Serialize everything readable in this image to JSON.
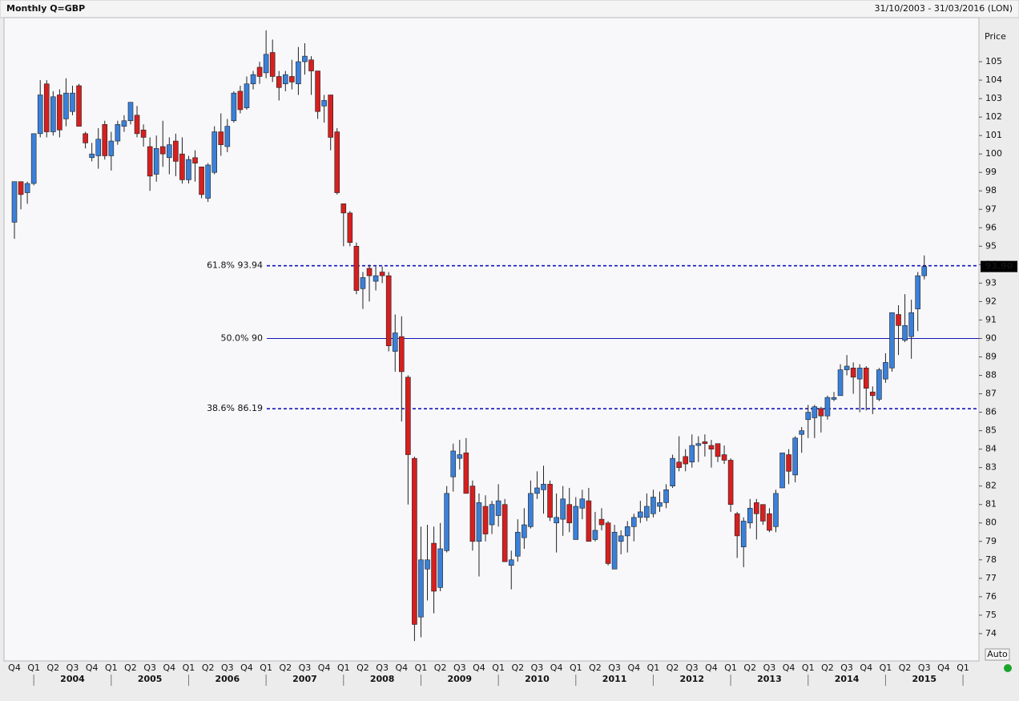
{
  "chart_data": {
    "type": "candlestick",
    "title": "Monthly Q=GBP",
    "date_range": "31/10/2003 - 31/03/2016 (LON)",
    "y_label": "Price",
    "auto_button": "Auto",
    "up_color": "#3b80d8",
    "down_color": "#d61f1f",
    "ylim": [
      72.52,
      107.39
    ],
    "yticks": [
      74,
      75,
      76,
      77,
      78,
      79,
      80,
      81,
      82,
      83,
      84,
      85,
      86,
      87,
      88,
      89,
      90,
      91,
      92,
      93,
      94,
      95,
      96,
      97,
      98,
      99,
      100,
      101,
      102,
      103,
      104,
      105
    ],
    "quarter_labels": [
      "Q4",
      "Q1",
      "Q2",
      "Q3",
      "Q4",
      "Q1",
      "Q2",
      "Q3",
      "Q4",
      "Q1",
      "Q2",
      "Q3",
      "Q4",
      "Q1",
      "Q2",
      "Q3",
      "Q4",
      "Q1",
      "Q2",
      "Q3",
      "Q4",
      "Q1",
      "Q2",
      "Q3",
      "Q4",
      "Q1",
      "Q2",
      "Q3",
      "Q4",
      "Q1",
      "Q2",
      "Q3",
      "Q4",
      "Q1",
      "Q2",
      "Q3",
      "Q4",
      "Q1",
      "Q2",
      "Q3",
      "Q4",
      "Q1",
      "Q2",
      "Q3",
      "Q4",
      "Q1",
      "Q2",
      "Q3",
      "Q4",
      "Q1"
    ],
    "year_labels": [
      "2004",
      "2005",
      "2006",
      "2007",
      "2008",
      "2009",
      "2010",
      "2011",
      "2012",
      "2013",
      "2014",
      "2015"
    ],
    "levels": [
      {
        "label": "61.8% 93.94",
        "value": 93.94,
        "style": "dashed"
      },
      {
        "label": "50.0% 90",
        "value": 90,
        "style": "solid"
      },
      {
        "label": "38.6% 86.19",
        "value": 86.19,
        "style": "dashed"
      }
    ],
    "last_price": {
      "value": 93.9,
      "label": "93.90"
    },
    "open": [
      96.3,
      98.5,
      97.9,
      98.4,
      101.1,
      103.8,
      101.2,
      103.2,
      101.9,
      102.3,
      103.7,
      101.1,
      99.8,
      99.9,
      101.6,
      99.9,
      100.7,
      101.5,
      101.8,
      102.1,
      101.3,
      100.4,
      98.9,
      100.4,
      99.8,
      100.7,
      100.0,
      98.6,
      99.8,
      99.3,
      97.6,
      99.0,
      101.2,
      100.4,
      101.8,
      103.4,
      102.5,
      103.8,
      104.7,
      104.4,
      105.5,
      104.2,
      103.8,
      104.2,
      103.8,
      105.0,
      105.1,
      104.5,
      102.6,
      103.2,
      101.2,
      97.3,
      96.8,
      95.0,
      92.7,
      93.8,
      93.1,
      93.6,
      93.4,
      89.3,
      90.1,
      87.9,
      83.5,
      74.9,
      77.5,
      78.9,
      76.5,
      78.5,
      82.5,
      83.5,
      83.8,
      82.0,
      79.0,
      80.9,
      79.9,
      80.4,
      81.0,
      77.7,
      78.2,
      79.2,
      79.8,
      81.6,
      81.8,
      82.1,
      80.0,
      80.2,
      81.0,
      79.1,
      80.8,
      81.2,
      79.1,
      80.2,
      80.0,
      77.5,
      79.0,
      79.3,
      79.8,
      80.3,
      80.3,
      80.5,
      80.9,
      81.1,
      82.0,
      83.3,
      83.6,
      83.3,
      84.2,
      84.4,
      84.2,
      84.3,
      83.7,
      83.4,
      80.5,
      78.7,
      80.0,
      81.1,
      81.0,
      80.5,
      79.8,
      81.9,
      83.7,
      82.6,
      84.8,
      85.6,
      85.7,
      86.2,
      85.8,
      86.7,
      86.9,
      88.3,
      88.4,
      87.8,
      88.4,
      87.1,
      86.7,
      87.8,
      88.4,
      91.3,
      89.9,
      90.1,
      91.6,
      93.4
    ],
    "high": [
      98.5,
      98.5,
      98.5,
      101.1,
      104.0,
      104.0,
      103.4,
      103.5,
      104.1,
      103.7,
      103.8,
      101.2,
      100.6,
      101.4,
      101.8,
      101.2,
      101.8,
      102.1,
      102.8,
      102.6,
      101.6,
      100.9,
      101.0,
      101.8,
      100.9,
      101.1,
      100.9,
      99.9,
      100.2,
      99.3,
      99.5,
      101.5,
      102.2,
      101.9,
      103.4,
      103.7,
      104.2,
      104.5,
      105.0,
      106.7,
      106.2,
      104.5,
      104.5,
      105.1,
      105.8,
      106.0,
      105.3,
      104.5,
      103.2,
      103.2,
      101.4,
      97.3,
      96.9,
      95.2,
      93.6,
      94.0,
      93.9,
      93.9,
      93.6,
      91.3,
      91.2,
      88.0,
      83.6,
      79.8,
      79.9,
      79.8,
      80.0,
      82.0,
      84.3,
      84.5,
      84.6,
      82.3,
      81.6,
      81.5,
      81.2,
      82.1,
      81.3,
      78.5,
      80.2,
      80.8,
      82.3,
      82.8,
      83.1,
      82.3,
      81.6,
      82.0,
      81.9,
      81.4,
      81.8,
      81.9,
      80.6,
      80.8,
      80.1,
      79.9,
      79.6,
      80.1,
      80.5,
      81.2,
      81.6,
      81.8,
      81.7,
      82.1,
      83.7,
      84.7,
      84.0,
      84.8,
      84.7,
      84.8,
      84.5,
      84.3,
      84.2,
      83.5,
      80.6,
      80.3,
      81.3,
      81.3,
      81.0,
      80.8,
      81.8,
      83.8,
      84.0,
      84.7,
      85.2,
      86.4,
      86.4,
      86.3,
      86.9,
      87.1,
      88.6,
      89.1,
      88.7,
      88.6,
      88.5,
      87.4,
      88.4,
      89.2,
      91.4,
      91.8,
      92.4,
      92.1,
      93.6,
      94.5
    ],
    "low": [
      95.4,
      97.0,
      97.3,
      98.3,
      100.9,
      100.9,
      101.0,
      100.9,
      101.5,
      102.1,
      101.5,
      100.3,
      99.6,
      99.2,
      99.7,
      99.1,
      100.5,
      101.2,
      101.6,
      100.9,
      100.4,
      98.0,
      98.5,
      99.3,
      98.9,
      98.8,
      98.4,
      98.4,
      98.5,
      97.6,
      97.4,
      98.9,
      99.9,
      100.1,
      101.7,
      102.2,
      102.4,
      103.5,
      103.8,
      104.1,
      103.9,
      102.9,
      103.4,
      103.5,
      103.2,
      104.3,
      103.2,
      101.9,
      101.7,
      100.2,
      97.8,
      95.0,
      95.0,
      92.4,
      91.6,
      92.0,
      92.6,
      93.0,
      89.3,
      88.2,
      85.5,
      81.0,
      73.6,
      73.8,
      75.8,
      75.1,
      76.3,
      78.4,
      81.7,
      82.9,
      81.6,
      78.5,
      77.1,
      79.0,
      79.4,
      79.8,
      77.9,
      76.4,
      77.9,
      78.6,
      79.7,
      81.3,
      80.5,
      80.1,
      78.4,
      79.3,
      79.5,
      79.1,
      80.2,
      79.0,
      79.0,
      79.6,
      77.7,
      77.5,
      78.3,
      78.4,
      79.0,
      80.0,
      80.1,
      80.3,
      80.6,
      80.8,
      81.9,
      82.8,
      82.8,
      83.0,
      83.3,
      83.6,
      83.0,
      83.3,
      83.2,
      80.6,
      78.1,
      77.6,
      79.7,
      79.1,
      79.9,
      79.5,
      79.5,
      81.9,
      82.1,
      82.2,
      83.8,
      84.6,
      84.6,
      84.9,
      85.6,
      86.6,
      86.9,
      88.0,
      87.0,
      86.0,
      86.1,
      85.9,
      86.6,
      87.6,
      88.2,
      89.1,
      89.8,
      88.9,
      90.4,
      93.2
    ],
    "close": [
      98.5,
      97.8,
      98.4,
      101.1,
      103.2,
      101.2,
      103.1,
      101.3,
      103.3,
      103.3,
      101.5,
      100.6,
      100.0,
      100.8,
      99.9,
      100.7,
      101.6,
      101.8,
      102.8,
      101.1,
      100.9,
      98.8,
      100.3,
      100.0,
      100.5,
      99.6,
      98.6,
      99.7,
      99.5,
      97.8,
      99.4,
      101.2,
      100.5,
      101.5,
      103.3,
      102.4,
      103.8,
      104.3,
      104.2,
      105.4,
      104.2,
      103.6,
      104.3,
      103.9,
      105.0,
      105.3,
      104.5,
      102.3,
      102.9,
      100.9,
      97.9,
      96.8,
      95.2,
      92.6,
      93.3,
      93.4,
      93.4,
      93.4,
      89.6,
      90.3,
      88.2,
      83.7,
      74.5,
      78.0,
      78.0,
      76.3,
      78.6,
      81.6,
      83.9,
      83.7,
      81.6,
      79.0,
      81.1,
      79.4,
      81.0,
      81.2,
      77.9,
      78.0,
      79.5,
      79.9,
      81.6,
      81.9,
      82.1,
      80.3,
      80.3,
      81.3,
      80.0,
      80.9,
      81.3,
      79.0,
      79.6,
      79.9,
      77.8,
      79.5,
      79.3,
      79.8,
      80.3,
      80.6,
      80.9,
      81.4,
      81.1,
      81.8,
      83.5,
      83.0,
      83.2,
      84.2,
      84.3,
      84.3,
      84.0,
      83.6,
      83.4,
      81.0,
      79.3,
      80.1,
      80.8,
      80.5,
      80.1,
      79.6,
      81.6,
      83.8,
      82.8,
      84.6,
      85.0,
      86.0,
      86.3,
      85.8,
      86.8,
      86.8,
      88.3,
      88.5,
      87.9,
      88.4,
      87.3,
      86.9,
      88.3,
      88.7,
      91.4,
      90.7,
      90.7,
      91.4,
      93.4,
      93.9
    ]
  }
}
